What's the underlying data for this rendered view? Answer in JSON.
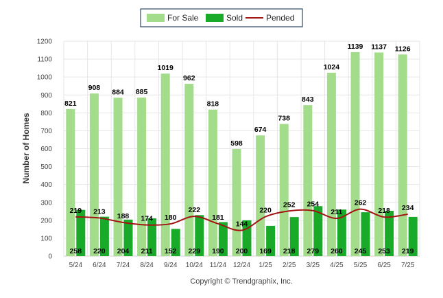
{
  "chart_data": {
    "type": "bar",
    "ylabel": "Number of Homes",
    "ylim": [
      0,
      1200
    ],
    "yticks": [
      0,
      100,
      200,
      300,
      400,
      500,
      600,
      700,
      800,
      900,
      1000,
      1100,
      1200
    ],
    "grid": true,
    "legend_placement": "top-center",
    "categories": [
      "5/24",
      "6/24",
      "7/24",
      "8/24",
      "9/24",
      "10/24",
      "11/24",
      "12/24",
      "1/25",
      "2/25",
      "3/25",
      "4/25",
      "5/25",
      "6/25",
      "7/25"
    ],
    "series": [
      {
        "name": "For Sale",
        "kind": "bar",
        "color": "#a3dc8a",
        "values": [
          821,
          908,
          884,
          885,
          1019,
          962,
          818,
          598,
          674,
          738,
          843,
          1024,
          1139,
          1137,
          1126
        ]
      },
      {
        "name": "Sold",
        "kind": "bar",
        "color": "#1aaa2a",
        "values": [
          258,
          220,
          204,
          211,
          152,
          229,
          190,
          200,
          169,
          218,
          279,
          260,
          245,
          253,
          219
        ]
      },
      {
        "name": "Pended",
        "kind": "line",
        "color": "#a31515",
        "values": [
          219,
          213,
          188,
          174,
          180,
          222,
          181,
          144,
          220,
          252,
          254,
          211,
          262,
          218,
          234
        ]
      }
    ]
  },
  "footer": {
    "copyright": "Copyright © Trendgraphix, Inc."
  }
}
